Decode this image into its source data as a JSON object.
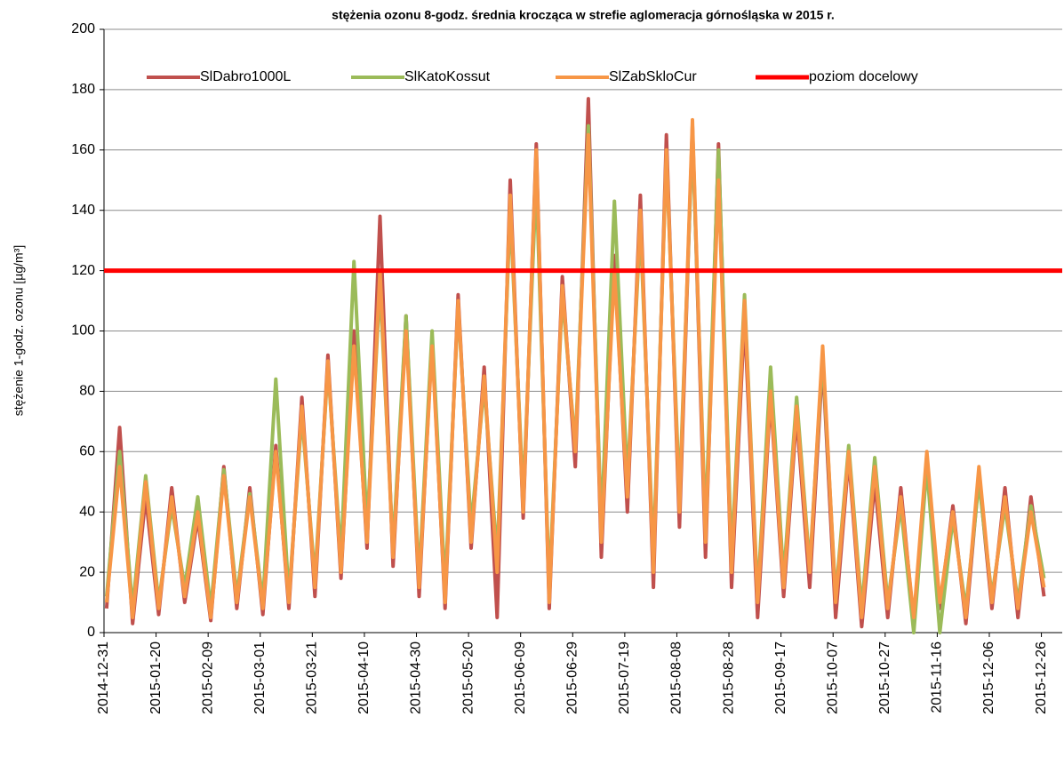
{
  "chart_data": {
    "type": "line",
    "title": "stężenia ozonu  8-godz. średnia krocząca w strefie aglomeracja górnośląska w 2015 r.",
    "y_label": "stężenie 1-godz. ozonu [µg/m³]",
    "x": [
      "2015-01-01",
      "2015-01-06",
      "2015-01-11",
      "2015-01-16",
      "2015-01-21",
      "2015-01-26",
      "2015-01-31",
      "2015-02-05",
      "2015-02-10",
      "2015-02-15",
      "2015-02-20",
      "2015-02-25",
      "2015-03-02",
      "2015-03-07",
      "2015-03-12",
      "2015-03-17",
      "2015-03-22",
      "2015-03-27",
      "2015-04-01",
      "2015-04-06",
      "2015-04-11",
      "2015-04-16",
      "2015-04-21",
      "2015-04-26",
      "2015-05-01",
      "2015-05-06",
      "2015-05-11",
      "2015-05-16",
      "2015-05-21",
      "2015-05-26",
      "2015-05-31",
      "2015-06-05",
      "2015-06-10",
      "2015-06-15",
      "2015-06-20",
      "2015-06-25",
      "2015-06-30",
      "2015-07-05",
      "2015-07-10",
      "2015-07-15",
      "2015-07-20",
      "2015-07-25",
      "2015-07-30",
      "2015-08-04",
      "2015-08-09",
      "2015-08-14",
      "2015-08-19",
      "2015-08-24",
      "2015-08-29",
      "2015-09-03",
      "2015-09-08",
      "2015-09-13",
      "2015-09-18",
      "2015-09-23",
      "2015-09-28",
      "2015-10-03",
      "2015-10-08",
      "2015-10-13",
      "2015-10-18",
      "2015-10-23",
      "2015-10-28",
      "2015-11-02",
      "2015-11-07",
      "2015-11-12",
      "2015-11-17",
      "2015-11-22",
      "2015-11-27",
      "2015-12-02",
      "2015-12-07",
      "2015-12-12",
      "2015-12-17",
      "2015-12-22",
      "2015-12-27"
    ],
    "series": [
      {
        "name": "SlDabro1000L",
        "color": "#c0504d",
        "width": 4,
        "values": [
          8,
          68,
          3,
          45,
          6,
          48,
          10,
          38,
          4,
          55,
          8,
          48,
          6,
          62,
          8,
          78,
          12,
          92,
          18,
          100,
          28,
          138,
          22,
          105,
          12,
          98,
          8,
          112,
          28,
          88,
          5,
          150,
          38,
          162,
          8,
          118,
          55,
          177,
          25,
          125,
          40,
          145,
          15,
          165,
          35,
          168,
          25,
          162,
          15,
          105,
          5,
          78,
          12,
          72,
          15,
          90,
          5,
          58,
          2,
          50,
          5,
          48,
          3,
          58,
          8,
          42,
          3,
          52,
          8,
          48,
          5,
          45,
          12
        ]
      },
      {
        "name": "SlKatoKossut",
        "color": "#9bbb59",
        "width": 4,
        "values": [
          12,
          60,
          8,
          52,
          10,
          42,
          15,
          45,
          8,
          54,
          12,
          46,
          10,
          84,
          12,
          72,
          18,
          88,
          25,
          123,
          35,
          115,
          28,
          105,
          18,
          100,
          15,
          108,
          35,
          82,
          25,
          140,
          45,
          150,
          15,
          112,
          62,
          168,
          35,
          143,
          50,
          135,
          25,
          158,
          45,
          165,
          35,
          160,
          25,
          112,
          12,
          88,
          18,
          78,
          22,
          92,
          12,
          62,
          8,
          58,
          10,
          42,
          0,
          55,
          0,
          38,
          8,
          50,
          12,
          42,
          10,
          42,
          18
        ]
      },
      {
        "name": "SlZabSkloCur",
        "color": "#f79646",
        "width": 4,
        "values": [
          10,
          55,
          5,
          50,
          8,
          45,
          12,
          40,
          5,
          52,
          10,
          45,
          8,
          60,
          10,
          75,
          15,
          90,
          20,
          95,
          30,
          120,
          25,
          100,
          15,
          95,
          10,
          110,
          30,
          85,
          20,
          145,
          40,
          160,
          10,
          115,
          60,
          165,
          30,
          120,
          45,
          140,
          20,
          160,
          40,
          170,
          30,
          150,
          20,
          110,
          10,
          80,
          15,
          75,
          20,
          95,
          10,
          60,
          5,
          55,
          8,
          45,
          5,
          60,
          10,
          40,
          5,
          55,
          10,
          45,
          8,
          40,
          15
        ]
      },
      {
        "name": "poziom docelowy",
        "color": "#ff0000",
        "width": 5,
        "x": [
          "2014-12-31",
          "2016-01-03"
        ],
        "values": [
          120,
          120
        ]
      }
    ],
    "xlim": [
      "2014-12-31",
      "2016-01-03"
    ],
    "xticks": [
      "2014-12-31",
      "2015-01-20",
      "2015-02-09",
      "2015-03-01",
      "2015-03-21",
      "2015-04-10",
      "2015-04-30",
      "2015-05-20",
      "2015-06-09",
      "2015-06-29",
      "2015-07-19",
      "2015-08-08",
      "2015-08-28",
      "2015-09-17",
      "2015-10-07",
      "2015-10-27",
      "2015-11-16",
      "2015-12-06",
      "2015-12-26"
    ],
    "ylim": [
      0,
      200
    ],
    "yticks": [
      0,
      20,
      40,
      60,
      80,
      100,
      120,
      140,
      160,
      180,
      200
    ],
    "grid": true,
    "legend": "top"
  }
}
